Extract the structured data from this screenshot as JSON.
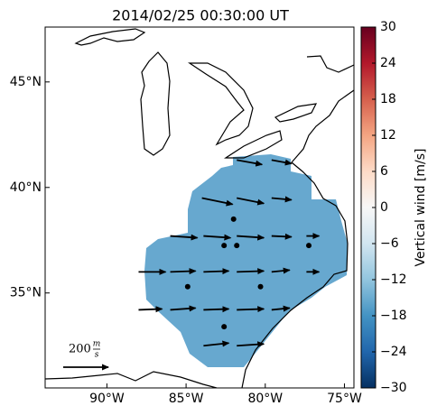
{
  "title": "2014/02/25 00:30:00 UT",
  "map": {
    "xlim": [
      -93.9,
      -74.4
    ],
    "ylim": [
      30.5,
      47.6
    ],
    "xticks": [
      {
        "value": -90,
        "label": "90°W"
      },
      {
        "value": -85,
        "label": "85°W"
      },
      {
        "value": -80,
        "label": "80°W"
      },
      {
        "value": -75,
        "label": "75°W"
      }
    ],
    "yticks": [
      {
        "value": 35,
        "label": "35°N"
      },
      {
        "value": 40,
        "label": "40°N"
      },
      {
        "value": 45,
        "label": "45°N"
      }
    ],
    "field": {
      "value": -14,
      "color": "#67a8cf"
    },
    "vectors": [
      {
        "lon": -81.8,
        "lat": 41.3,
        "u": 112,
        "v": -20
      },
      {
        "lon": -79.6,
        "lat": 41.3,
        "u": 88,
        "v": -16
      },
      {
        "lon": -84,
        "lat": 39.5,
        "u": 136,
        "v": -28
      },
      {
        "lon": -81.8,
        "lat": 39.5,
        "u": 120,
        "v": -24
      },
      {
        "lon": -79.6,
        "lat": 39.5,
        "u": 88,
        "v": -8
      },
      {
        "lon": -82,
        "lat": 38.5,
        "u": 0,
        "v": 0
      },
      {
        "lon": -86,
        "lat": 37.7,
        "u": 120,
        "v": -8
      },
      {
        "lon": -83.9,
        "lat": 37.7,
        "u": 120,
        "v": -8
      },
      {
        "lon": -81.8,
        "lat": 37.7,
        "u": 120,
        "v": -8
      },
      {
        "lon": -79.6,
        "lat": 37.7,
        "u": 88,
        "v": -4
      },
      {
        "lon": -77.4,
        "lat": 37.7,
        "u": 56,
        "v": 0
      },
      {
        "lon": -82.6,
        "lat": 37.25,
        "u": 0,
        "v": 0
      },
      {
        "lon": -81.8,
        "lat": 37.25,
        "u": 0,
        "v": 0
      },
      {
        "lon": -77.25,
        "lat": 37.25,
        "u": 0,
        "v": 0
      },
      {
        "lon": -88,
        "lat": 36,
        "u": 120,
        "v": 0
      },
      {
        "lon": -86,
        "lat": 36,
        "u": 112,
        "v": 4
      },
      {
        "lon": -83.9,
        "lat": 36,
        "u": 112,
        "v": 4
      },
      {
        "lon": -81.8,
        "lat": 36,
        "u": 120,
        "v": 4
      },
      {
        "lon": -79.6,
        "lat": 36,
        "u": 80,
        "v": 8
      },
      {
        "lon": -77.4,
        "lat": 36,
        "u": 56,
        "v": 0
      },
      {
        "lon": -84.9,
        "lat": 35.3,
        "u": 0,
        "v": 0
      },
      {
        "lon": -80.3,
        "lat": 35.3,
        "u": 0,
        "v": 0
      },
      {
        "lon": -88,
        "lat": 34.2,
        "u": 104,
        "v": 4
      },
      {
        "lon": -86,
        "lat": 34.2,
        "u": 112,
        "v": 8
      },
      {
        "lon": -83.9,
        "lat": 34.2,
        "u": 112,
        "v": 4
      },
      {
        "lon": -81.8,
        "lat": 34.2,
        "u": 120,
        "v": 4
      },
      {
        "lon": -79.6,
        "lat": 34.2,
        "u": 80,
        "v": 8
      },
      {
        "lon": -82.6,
        "lat": 33.4,
        "u": 0,
        "v": 0
      },
      {
        "lon": -83.9,
        "lat": 32.5,
        "u": 112,
        "v": 12
      },
      {
        "lon": -81.8,
        "lat": 32.5,
        "u": 120,
        "v": 8
      }
    ],
    "scale": {
      "value": 200,
      "unit_num": "m",
      "unit_den": "s"
    }
  },
  "colorbar": {
    "label": "Vertical wind [m/s]",
    "lim": [
      -30,
      30
    ],
    "ticks": [
      {
        "value": -30,
        "label": "−30"
      },
      {
        "value": -24,
        "label": "−24"
      },
      {
        "value": -18,
        "label": "−18"
      },
      {
        "value": -12,
        "label": "−12"
      },
      {
        "value": -6,
        "label": "−6"
      },
      0,
      6,
      12,
      18,
      24,
      30
    ]
  }
}
